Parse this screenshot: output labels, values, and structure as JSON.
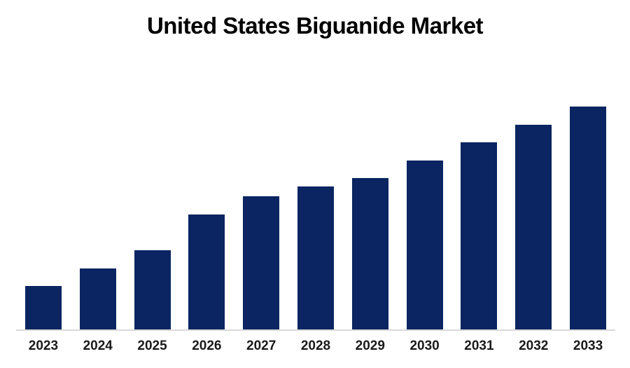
{
  "page": {
    "background": "#ffffff"
  },
  "chart_data": {
    "type": "bar",
    "title": "United States Biguanide Market",
    "categories": [
      "2023",
      "2024",
      "2025",
      "2026",
      "2027",
      "2028",
      "2029",
      "2030",
      "2031",
      "2032",
      "2033"
    ],
    "values": [
      63,
      88,
      114,
      165,
      191,
      205,
      217,
      242,
      268,
      293,
      319
    ],
    "values_unit": "relative height (no y-axis scale shown in chart)",
    "xlabel": "",
    "ylabel": "",
    "ylim": [
      0,
      330
    ],
    "grid": false,
    "legend": false,
    "bar_color": "#0A2561",
    "axis_line_color": "#D9D9D9",
    "title_color": "#000000",
    "tick_label_color": "#1a1a1a"
  }
}
